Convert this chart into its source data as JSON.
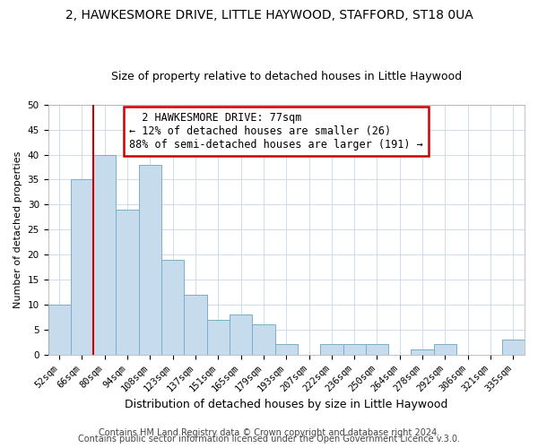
{
  "title": "2, HAWKESMORE DRIVE, LITTLE HAYWOOD, STAFFORD, ST18 0UA",
  "subtitle": "Size of property relative to detached houses in Little Haywood",
  "xlabel": "Distribution of detached houses by size in Little Haywood",
  "ylabel": "Number of detached properties",
  "bar_labels": [
    "52sqm",
    "66sqm",
    "80sqm",
    "94sqm",
    "108sqm",
    "123sqm",
    "137sqm",
    "151sqm",
    "165sqm",
    "179sqm",
    "193sqm",
    "207sqm",
    "222sqm",
    "236sqm",
    "250sqm",
    "264sqm",
    "278sqm",
    "292sqm",
    "306sqm",
    "321sqm",
    "335sqm"
  ],
  "bar_heights": [
    10,
    35,
    40,
    29,
    38,
    19,
    12,
    7,
    8,
    6,
    2,
    0,
    2,
    2,
    2,
    0,
    1,
    2,
    0,
    0,
    3
  ],
  "bar_color": "#c6dcec",
  "bar_edge_color": "#7aaec8",
  "vline_color": "#cc0000",
  "annotation_title": "2 HAWKESMORE DRIVE: 77sqm",
  "annotation_line1": "← 12% of detached houses are smaller (26)",
  "annotation_line2": "88% of semi-detached houses are larger (191) →",
  "annotation_box_edge": "#cc0000",
  "ylim": [
    0,
    50
  ],
  "yticks": [
    0,
    5,
    10,
    15,
    20,
    25,
    30,
    35,
    40,
    45,
    50
  ],
  "footer1": "Contains HM Land Registry data © Crown copyright and database right 2024.",
  "footer2": "Contains public sector information licensed under the Open Government Licence v.3.0.",
  "title_fontsize": 10,
  "subtitle_fontsize": 9,
  "xlabel_fontsize": 9,
  "ylabel_fontsize": 8,
  "tick_fontsize": 7.5,
  "annotation_fontsize": 8.5,
  "footer_fontsize": 7,
  "background_color": "#ffffff",
  "grid_color": "#c8d8e8"
}
